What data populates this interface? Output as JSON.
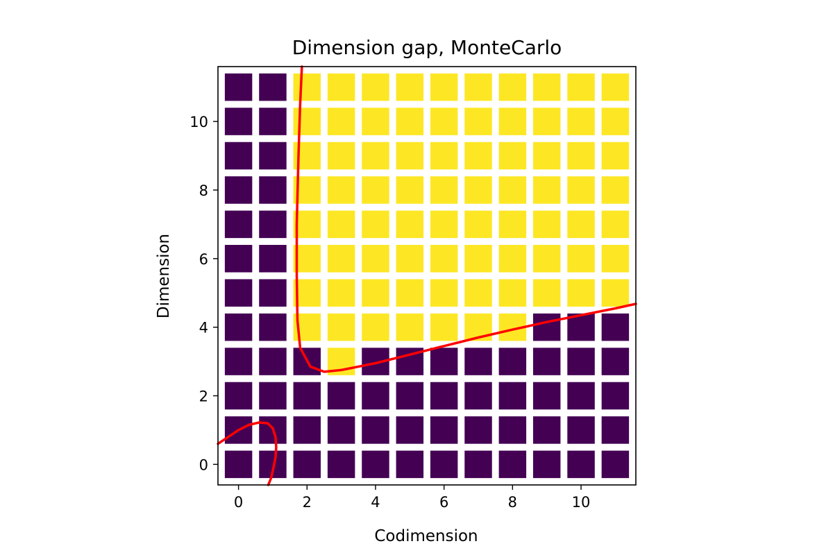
{
  "chart_data": {
    "type": "heatmap",
    "title": "Dimension gap, MonteCarlo",
    "xlabel": "Codimension",
    "ylabel": "Dimension",
    "xlim": [
      -0.6,
      11.6
    ],
    "ylim": [
      -0.6,
      11.6
    ],
    "x_ticks": [
      0,
      2,
      4,
      6,
      8,
      10
    ],
    "y_ticks": [
      0,
      2,
      4,
      6,
      8,
      10
    ],
    "grid": false,
    "cell_colors": {
      "0": "#440154",
      "1": "#fde725"
    },
    "cells": [
      [
        0,
        0,
        0,
        0,
        0,
        0,
        0,
        0,
        0,
        0,
        0,
        0
      ],
      [
        0,
        0,
        0,
        0,
        0,
        0,
        0,
        0,
        0,
        0,
        0,
        0
      ],
      [
        0,
        0,
        0,
        0,
        0,
        0,
        0,
        0,
        0,
        0,
        0,
        0
      ],
      [
        0,
        0,
        0,
        1,
        0,
        0,
        0,
        0,
        0,
        0,
        0,
        0
      ],
      [
        0,
        0,
        1,
        1,
        1,
        1,
        1,
        1,
        1,
        0,
        0,
        0
      ],
      [
        0,
        0,
        1,
        1,
        1,
        1,
        1,
        1,
        1,
        1,
        1,
        1
      ],
      [
        0,
        0,
        1,
        1,
        1,
        1,
        1,
        1,
        1,
        1,
        1,
        1
      ],
      [
        0,
        0,
        1,
        1,
        1,
        1,
        1,
        1,
        1,
        1,
        1,
        1
      ],
      [
        0,
        0,
        1,
        1,
        1,
        1,
        1,
        1,
        1,
        1,
        1,
        1
      ],
      [
        0,
        0,
        1,
        1,
        1,
        1,
        1,
        1,
        1,
        1,
        1,
        1
      ],
      [
        0,
        0,
        1,
        1,
        1,
        1,
        1,
        1,
        1,
        1,
        1,
        1
      ],
      [
        0,
        0,
        1,
        1,
        1,
        1,
        1,
        1,
        1,
        1,
        1,
        1
      ]
    ],
    "curve_color": "#ff0000",
    "curves": [
      {
        "points": [
          [
            1.85,
            11.6
          ],
          [
            1.8,
            10.5
          ],
          [
            1.75,
            9.0
          ],
          [
            1.7,
            7.0
          ],
          [
            1.7,
            5.5
          ],
          [
            1.72,
            4.2
          ],
          [
            1.8,
            3.4
          ],
          [
            2.1,
            2.85
          ],
          [
            2.5,
            2.7
          ],
          [
            3.0,
            2.75
          ],
          [
            4.0,
            2.95
          ],
          [
            5.0,
            3.2
          ],
          [
            6.0,
            3.45
          ],
          [
            7.0,
            3.7
          ],
          [
            8.0,
            3.93
          ],
          [
            9.0,
            4.15
          ],
          [
            10.0,
            4.35
          ],
          [
            11.0,
            4.55
          ],
          [
            11.6,
            4.68
          ]
        ]
      },
      {
        "points": [
          [
            -0.6,
            0.6
          ],
          [
            -0.3,
            0.8
          ],
          [
            0.0,
            1.0
          ],
          [
            0.3,
            1.15
          ],
          [
            0.6,
            1.22
          ],
          [
            0.85,
            1.2
          ],
          [
            1.0,
            1.05
          ],
          [
            1.08,
            0.8
          ],
          [
            1.1,
            0.5
          ],
          [
            1.08,
            0.2
          ],
          [
            1.02,
            -0.1
          ],
          [
            0.95,
            -0.4
          ],
          [
            0.87,
            -0.6
          ]
        ]
      }
    ]
  }
}
